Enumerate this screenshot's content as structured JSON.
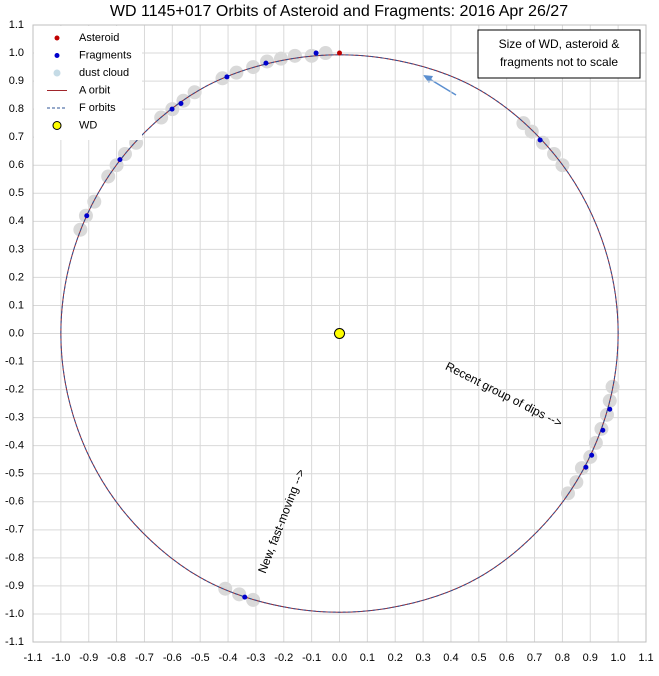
{
  "chart_data": {
    "type": "scatter",
    "title": "WD 1145+017 Orbits of Asteroid and Fragments: 2016 Apr 26/27",
    "xlim": [
      -1.1,
      1.1
    ],
    "ylim": [
      -1.1,
      1.1
    ],
    "xticks": [
      -1.1,
      {
        "value": -1,
        "label": "-1.0"
      },
      -0.9,
      -0.8,
      -0.7,
      -0.6,
      -0.5,
      -0.4,
      -0.3,
      -0.2,
      -0.1,
      {
        "value": 0,
        "label": "0.0"
      },
      0.1,
      0.2,
      0.3,
      0.4,
      0.5,
      0.6,
      0.7,
      0.8,
      0.9,
      {
        "value": 1,
        "label": "1.0"
      },
      1.1
    ],
    "yticks": [
      -1.1,
      {
        "value": -1,
        "label": "-1.0"
      },
      -0.9,
      -0.8,
      -0.7,
      -0.6,
      -0.5,
      -0.4,
      -0.3,
      -0.2,
      -0.1,
      {
        "value": 0,
        "label": "0.0"
      },
      0.1,
      0.2,
      0.3,
      0.4,
      0.5,
      0.6,
      0.7,
      0.8,
      0.9,
      {
        "value": 1,
        "label": "1.0"
      },
      1.1
    ],
    "grid": true,
    "legend": "upper left",
    "series": [
      {
        "name": "Asteroid",
        "color": "#c00000",
        "mode": "markers",
        "x": [
          0
        ],
        "y": [
          1
        ]
      },
      {
        "name": "Fragments",
        "color": "#0000cc",
        "mode": "markers",
        "x": [
          -0.084,
          -0.264,
          -0.404,
          -0.569,
          -0.601,
          -0.788,
          -0.907,
          0.72,
          0.97,
          0.945,
          0.905,
          0.884,
          -0.34
        ],
        "y": [
          1.0,
          0.964,
          0.915,
          0.82,
          0.8,
          0.62,
          0.42,
          0.69,
          -0.27,
          -0.345,
          -0.434,
          -0.477,
          -0.94
        ]
      },
      {
        "name": "dust cloud",
        "color": "#d9d9d9",
        "mode": "cloud",
        "x": [
          -0.05,
          -0.1,
          -0.16,
          -0.21,
          -0.26,
          -0.31,
          -0.37,
          -0.42,
          -0.52,
          -0.56,
          -0.6,
          -0.64,
          -0.73,
          -0.77,
          -0.8,
          -0.83,
          -0.88,
          -0.91,
          -0.93,
          0.8,
          0.77,
          0.73,
          0.69,
          0.66,
          0.98,
          0.97,
          0.96,
          0.94,
          0.92,
          0.9,
          0.87,
          0.85,
          0.82,
          -0.41,
          -0.36,
          -0.31
        ],
        "y": [
          1.0,
          0.99,
          0.99,
          0.98,
          0.97,
          0.95,
          0.93,
          0.91,
          0.86,
          0.83,
          0.8,
          0.77,
          0.68,
          0.64,
          0.6,
          0.56,
          0.47,
          0.42,
          0.37,
          0.6,
          0.64,
          0.68,
          0.72,
          0.75,
          -0.19,
          -0.24,
          -0.29,
          -0.34,
          -0.39,
          -0.44,
          -0.48,
          -0.53,
          -0.57,
          -0.91,
          -0.93,
          -0.95
        ]
      },
      {
        "name": "A orbit",
        "color": "#a0252b",
        "mode": "lines",
        "x": [
          1,
          0.94,
          0.77,
          0.5,
          0.17,
          -0.17,
          -0.5,
          -0.77,
          -0.94,
          -1,
          -0.94,
          -0.77,
          -0.5,
          -0.17,
          0.17,
          0.5,
          0.77,
          0.94,
          1
        ],
        "y": [
          0,
          0.34,
          0.64,
          0.87,
          0.98,
          0.98,
          0.87,
          0.64,
          0.34,
          0,
          -0.34,
          -0.64,
          -0.87,
          -0.98,
          -0.98,
          -0.87,
          -0.64,
          -0.34,
          0
        ]
      },
      {
        "name": "F orbits",
        "color": "#2f5597",
        "mode": "lines",
        "dashed": true,
        "x": [
          1,
          0.94,
          0.77,
          0.5,
          0.17,
          -0.17,
          -0.5,
          -0.77,
          -0.94,
          -1,
          -0.94,
          -0.77,
          -0.5,
          -0.17,
          0.17,
          0.5,
          0.77,
          0.94,
          1
        ],
        "y": [
          0,
          0.34,
          0.64,
          0.87,
          0.98,
          0.98,
          0.87,
          0.64,
          0.34,
          0,
          -0.34,
          -0.64,
          -0.87,
          -0.98,
          -0.98,
          -0.87,
          -0.64,
          -0.34,
          0
        ]
      },
      {
        "name": "WD",
        "color": "#ffff00",
        "mode": "star",
        "x": [
          0
        ],
        "y": [
          0
        ]
      }
    ],
    "note": [
      "Size of WD, asteroid &",
      "fragments not to scale"
    ],
    "annotations": [
      "Recent group of dips -->",
      "New, fast-moving -->"
    ]
  }
}
